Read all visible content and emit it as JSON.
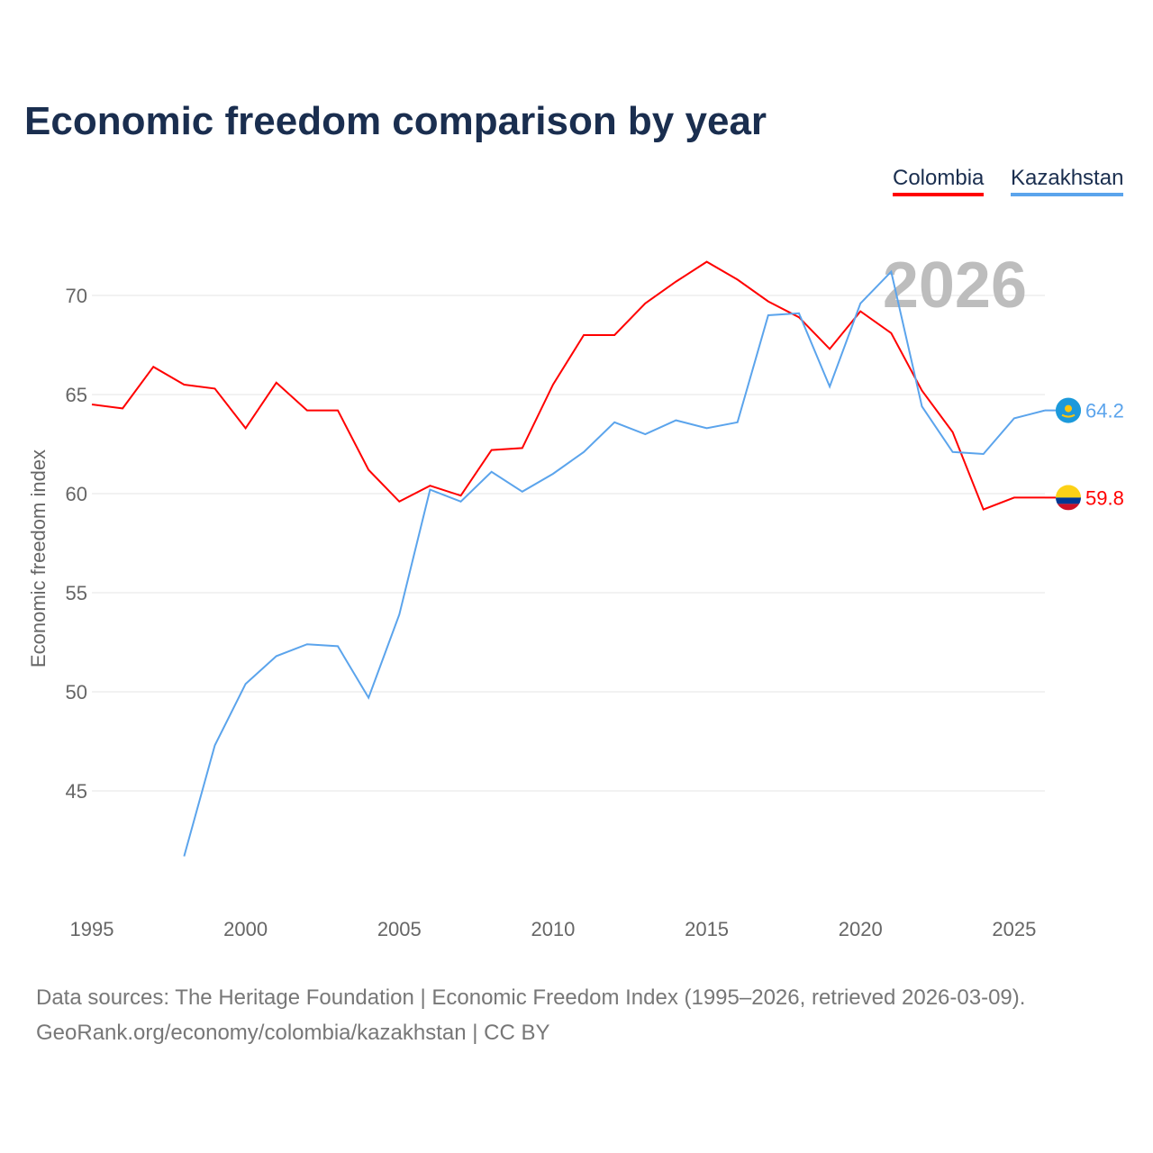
{
  "title": "Economic freedom comparison by year",
  "legend": [
    "Colombia",
    "Kazakhstan"
  ],
  "footer": {
    "line1": "Data sources: The Heritage Foundation | Economic Freedom Index (1995–2026, retrieved 2026-03-09).",
    "line2": "GeoRank.org/economy/colombia/kazakhstan | CC BY"
  },
  "chart_data": {
    "type": "line",
    "title": "Economic freedom comparison by year",
    "ylabel": "Economic freedom index",
    "xlabel": "",
    "year_label": "2026",
    "xlim": [
      1995,
      2026
    ],
    "ylim": [
      40,
      73
    ],
    "xticks": [
      1995,
      2000,
      2005,
      2010,
      2015,
      2020,
      2025
    ],
    "yticks": [
      45,
      50,
      55,
      60,
      65,
      70
    ],
    "grid": true,
    "legend_position": "top-right",
    "series": [
      {
        "name": "Colombia",
        "color": "#ff0000",
        "end_label": "59.8",
        "flag": "colombia-flag",
        "x": [
          1995,
          1996,
          1997,
          1998,
          1999,
          2000,
          2001,
          2002,
          2003,
          2004,
          2005,
          2006,
          2007,
          2008,
          2009,
          2010,
          2011,
          2012,
          2013,
          2014,
          2015,
          2016,
          2017,
          2018,
          2019,
          2020,
          2021,
          2022,
          2023,
          2024,
          2025,
          2026
        ],
        "values": [
          64.5,
          64.3,
          66.4,
          65.5,
          65.3,
          63.3,
          65.6,
          64.2,
          64.2,
          61.2,
          59.6,
          60.4,
          59.9,
          62.2,
          62.3,
          65.5,
          68.0,
          68.0,
          69.6,
          70.7,
          71.7,
          70.8,
          69.7,
          68.9,
          67.3,
          69.2,
          68.1,
          65.2,
          63.1,
          59.2,
          59.8,
          59.8
        ]
      },
      {
        "name": "Kazakhstan",
        "color": "#5ba4ec",
        "end_label": "64.2",
        "flag": "kazakhstan-flag",
        "x": [
          1998,
          1999,
          2000,
          2001,
          2002,
          2003,
          2004,
          2005,
          2006,
          2007,
          2008,
          2009,
          2010,
          2011,
          2012,
          2013,
          2014,
          2015,
          2016,
          2017,
          2018,
          2019,
          2020,
          2021,
          2022,
          2023,
          2024,
          2025,
          2026
        ],
        "values": [
          41.7,
          47.3,
          50.4,
          51.8,
          52.4,
          52.3,
          49.7,
          53.9,
          60.2,
          59.6,
          61.1,
          60.1,
          61.0,
          62.1,
          63.6,
          63.0,
          63.7,
          63.3,
          63.6,
          69.0,
          69.1,
          65.4,
          69.6,
          71.2,
          64.4,
          62.1,
          62.0,
          63.8,
          64.2
        ]
      }
    ]
  }
}
